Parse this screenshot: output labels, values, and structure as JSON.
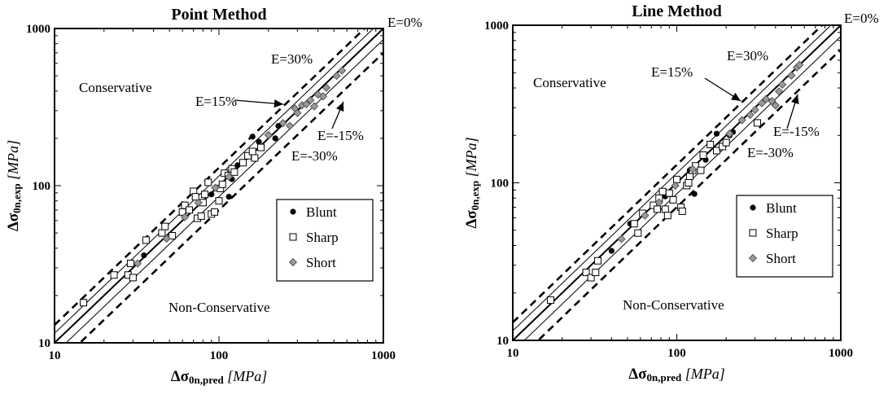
{
  "chart_data": [
    {
      "type": "scatter",
      "title": "Point Method",
      "xlabel": "Δσ0n,pred [MPa]",
      "ylabel": "Δσ0n,exp [MPa]",
      "xscale": "log",
      "yscale": "log",
      "xlim": [
        10,
        1000
      ],
      "ylim": [
        10,
        1000
      ],
      "xticks": [
        "10",
        "100",
        "1000"
      ],
      "yticks": [
        "10",
        "100",
        "1000"
      ],
      "region_labels": {
        "upper": "Conservative",
        "lower": "Non-Conservative"
      },
      "lines": [
        {
          "label": "E=0%",
          "factor": 1.0,
          "style": "solid-thick"
        },
        {
          "label": "E=15%",
          "factor": 1.15,
          "style": "solid-thin"
        },
        {
          "label": "E=-15%",
          "factor": 0.85,
          "style": "solid-thin"
        },
        {
          "label": "E=30%",
          "factor": 1.3,
          "style": "dashed"
        },
        {
          "label": "E=-30%",
          "factor": 0.7,
          "style": "dashed"
        }
      ],
      "legend_position": "center-right",
      "series": [
        {
          "name": "Blunt",
          "marker": "filled-circle",
          "points": [
            [
              35,
              36
            ],
            [
              90,
              88
            ],
            [
              115,
              85
            ],
            [
              130,
              135
            ],
            [
              160,
              205
            ],
            [
              175,
              190
            ],
            [
              220,
              200
            ],
            [
              230,
              240
            ],
            [
              120,
              110
            ]
          ]
        },
        {
          "name": "Sharp",
          "marker": "open-square",
          "points": [
            [
              15,
              18
            ],
            [
              23,
              27
            ],
            [
              28,
              27
            ],
            [
              30,
              26
            ],
            [
              29,
              32
            ],
            [
              36,
              45
            ],
            [
              45,
              50
            ],
            [
              47,
              55
            ],
            [
              52,
              48
            ],
            [
              60,
              68
            ],
            [
              62,
              75
            ],
            [
              66,
              70
            ],
            [
              70,
              92
            ],
            [
              72,
              85
            ],
            [
              74,
              62
            ],
            [
              78,
              64
            ],
            [
              80,
              78
            ],
            [
              82,
              88
            ],
            [
              86,
              105
            ],
            [
              90,
              66
            ],
            [
              94,
              68
            ],
            [
              100,
              80
            ],
            [
              102,
              96
            ],
            [
              105,
              102
            ],
            [
              108,
              120
            ],
            [
              114,
              116
            ],
            [
              120,
              128
            ],
            [
              124,
              122
            ],
            [
              140,
              140
            ],
            [
              150,
              155
            ],
            [
              160,
              165
            ],
            [
              165,
              150
            ],
            [
              180,
              175
            ]
          ]
        },
        {
          "name": "Short",
          "marker": "gray-diamond",
          "points": [
            [
              32,
              32
            ],
            [
              48,
              46
            ],
            [
              62,
              63
            ],
            [
              75,
              78
            ],
            [
              95,
              97
            ],
            [
              115,
              114
            ],
            [
              200,
              210
            ],
            [
              245,
              250
            ],
            [
              270,
              240
            ],
            [
              290,
              310
            ],
            [
              300,
              290
            ],
            [
              320,
              325
            ],
            [
              340,
              330
            ],
            [
              360,
              350
            ],
            [
              380,
              320
            ],
            [
              400,
              380
            ],
            [
              430,
              370
            ],
            [
              450,
              420
            ],
            [
              520,
              500
            ],
            [
              560,
              540
            ]
          ]
        }
      ]
    },
    {
      "type": "scatter",
      "title": "Line Method",
      "xlabel": "Δσ0n,pred [MPa]",
      "ylabel": "Δσ0n,exp [MPa]",
      "xscale": "log",
      "yscale": "log",
      "xlim": [
        10,
        1000
      ],
      "ylim": [
        10,
        1000
      ],
      "xticks": [
        "10",
        "100",
        "1000"
      ],
      "yticks": [
        "10",
        "100",
        "1000"
      ],
      "region_labels": {
        "upper": "Conservative",
        "lower": "Non-Conservative"
      },
      "lines": [
        {
          "label": "E=0%",
          "factor": 1.0,
          "style": "solid-thick"
        },
        {
          "label": "E=15%",
          "factor": 1.15,
          "style": "solid-thin"
        },
        {
          "label": "E=-15%",
          "factor": 0.85,
          "style": "solid-thin"
        },
        {
          "label": "E=30%",
          "factor": 1.3,
          "style": "dashed"
        },
        {
          "label": "E=-30%",
          "factor": 0.7,
          "style": "dashed"
        }
      ],
      "legend_position": "center-right",
      "series": [
        {
          "name": "Blunt",
          "marker": "filled-circle",
          "points": [
            [
              40,
              37
            ],
            [
              52,
              55
            ],
            [
              85,
              82
            ],
            [
              128,
              85
            ],
            [
              150,
              140
            ],
            [
              175,
              205
            ],
            [
              210,
              200
            ],
            [
              220,
              210
            ],
            [
              120,
              120
            ]
          ]
        },
        {
          "name": "Sharp",
          "marker": "open-square",
          "points": [
            [
              17,
              18
            ],
            [
              28,
              27
            ],
            [
              30,
              25
            ],
            [
              32,
              27
            ],
            [
              33,
              32
            ],
            [
              55,
              55
            ],
            [
              58,
              48
            ],
            [
              62,
              64
            ],
            [
              72,
              72
            ],
            [
              76,
              68
            ],
            [
              78,
              80
            ],
            [
              82,
              88
            ],
            [
              85,
              68
            ],
            [
              88,
              62
            ],
            [
              90,
              86
            ],
            [
              95,
              78
            ],
            [
              100,
              105
            ],
            [
              106,
              70
            ],
            [
              108,
              66
            ],
            [
              115,
              96
            ],
            [
              118,
              100
            ],
            [
              120,
              110
            ],
            [
              125,
              120
            ],
            [
              130,
              128
            ],
            [
              140,
              120
            ],
            [
              145,
              150
            ],
            [
              160,
              175
            ],
            [
              175,
              160
            ],
            [
              190,
              170
            ],
            [
              200,
              180
            ],
            [
              310,
              240
            ]
          ]
        },
        {
          "name": "Short",
          "marker": "gray-diamond",
          "points": [
            [
              46,
              44
            ],
            [
              64,
              62
            ],
            [
              78,
              75
            ],
            [
              98,
              96
            ],
            [
              125,
              122
            ],
            [
              210,
              205
            ],
            [
              250,
              250
            ],
            [
              280,
              270
            ],
            [
              300,
              290
            ],
            [
              330,
              320
            ],
            [
              350,
              340
            ],
            [
              380,
              330
            ],
            [
              400,
              310
            ],
            [
              420,
              380
            ],
            [
              440,
              420
            ],
            [
              500,
              480
            ],
            [
              540,
              540
            ],
            [
              560,
              560
            ]
          ]
        }
      ]
    }
  ]
}
